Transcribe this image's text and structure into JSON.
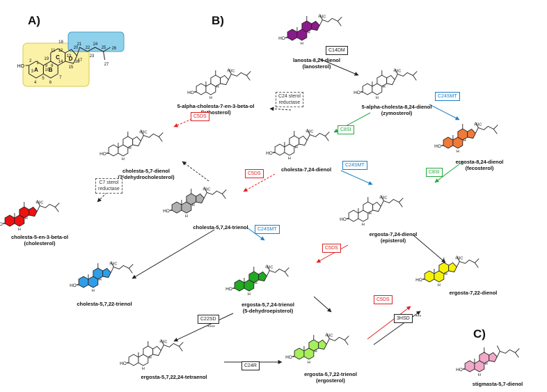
{
  "panels": {
    "a": "A)",
    "b": "B)",
    "c": "C)"
  },
  "panel_a": {
    "ring_labels": [
      "A",
      "B",
      "C",
      "D"
    ],
    "atom_numbers": [
      "1",
      "2",
      "3",
      "4",
      "5",
      "6",
      "7",
      "8",
      "9",
      "10",
      "11",
      "12",
      "13",
      "14",
      "15",
      "16",
      "17",
      "18",
      "19",
      "20",
      "21",
      "22",
      "23",
      "24",
      "25",
      "26",
      "27"
    ],
    "ho": "HO",
    "colors": {
      "core_box": "#fbf2a8",
      "side_box": "#8fd0ea"
    }
  },
  "compounds": {
    "lanosterol": {
      "name": "lanosta-8,24-dienol\n(lanosterol)",
      "color": "#8b1a8b"
    },
    "zymosterol": {
      "name": "5-alpha-cholesta-8,24-dienol\n(zymosterol)",
      "color": "#ffffff"
    },
    "lathosterol": {
      "name": "5-alpha-cholesta-7-en-3-beta-ol\n(lathosterol)",
      "color": "#ffffff"
    },
    "dhc": {
      "name": "cholesta-5,7-dienol\n(7-dehydrocholesterol)",
      "color": "#ffffff"
    },
    "cholesta724": {
      "name": "cholesta-7,24-dienol",
      "color": "#ffffff"
    },
    "fecosterol": {
      "name": "ergosta-8,24-dienol\n(fecosterol)",
      "color": "#f07a3a"
    },
    "cholesterol": {
      "name": "cholesta-5-en-3-beta-ol\n(cholesterol)",
      "color": "#ee1111"
    },
    "trienol": {
      "name": "cholesta-5,7,24-trienol",
      "color": "#b0b0b0"
    },
    "episterol": {
      "name": "ergosta-7,24-dienol\n(episterol)",
      "color": "#ffffff"
    },
    "ergosta722": {
      "name": "ergosta-7,22-dienol",
      "color": "#f5f20a"
    },
    "cholesta5722": {
      "name": "cholesta-5,7,22-trienol",
      "color": "#2f9ee8"
    },
    "dehydroepisterol": {
      "name": "ergosta-5,7,24-trienol\n(5-dehydroepisterol)",
      "color": "#22aa22"
    },
    "tetraenol": {
      "name": "ergosta-5,7,22,24-tetraenol",
      "color": "#ffffff"
    },
    "ergosterol": {
      "name": "ergosta-5,7,22-trienol\n(ergosterol)",
      "color": "#a6ef5a"
    },
    "stigmasta": {
      "name": "stigmasta-5,7-dienol",
      "color": "#f2a8c8"
    }
  },
  "enzymes": {
    "c14dm": {
      "label": "C14DM",
      "color": "#222222"
    },
    "c24smt_1": {
      "label": "C24SMT",
      "color": "#1a7ec4"
    },
    "c8si_1": {
      "label": "C8SI",
      "color": "#22a83a"
    },
    "c24_reductase": {
      "label": "C24 sterol\nreductase",
      "color": "#333333"
    },
    "c5ds_1": {
      "label": "C5DS",
      "color": "#e02020"
    },
    "c7_reductase": {
      "label": "C7 sterol\nreductase",
      "color": "#333333"
    },
    "c5ds_2": {
      "label": "C5DS",
      "color": "#e02020"
    },
    "c24smt_2": {
      "label": "C24SMT",
      "color": "#1a7ec4"
    },
    "c8si_2": {
      "label": "C8SI",
      "color": "#22a83a"
    },
    "c24smt_3": {
      "label": "C24SMT",
      "color": "#1a7ec4"
    },
    "c5ds_3": {
      "label": "C5DS",
      "color": "#e02020"
    },
    "c22sd": {
      "label": "C22SD",
      "color": "#222222"
    },
    "c24r": {
      "label": "C24R",
      "color": "#222222"
    },
    "c5ds_4": {
      "label": "C5DS",
      "color": "#e02020"
    },
    "3hsd": {
      "label": "3HSD",
      "color": "#222222"
    }
  },
  "marks": {
    "stars4": "****",
    "stars3": "***"
  },
  "atoms": {
    "ho": "HO",
    "h": "H",
    "h3c": "H3C",
    "ch3": "CH3"
  }
}
